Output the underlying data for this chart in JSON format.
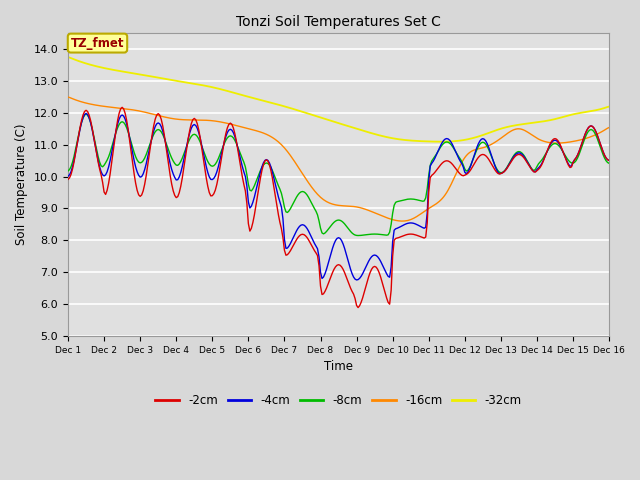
{
  "title": "Tonzi Soil Temperatures Set C",
  "xlabel": "Time",
  "ylabel": "Soil Temperature (C)",
  "ylim": [
    5.0,
    14.5
  ],
  "yticks": [
    5.0,
    6.0,
    7.0,
    8.0,
    9.0,
    10.0,
    11.0,
    12.0,
    13.0,
    14.0
  ],
  "legend_label": "TZ_fmet",
  "legend_entries": [
    "-2cm",
    "-4cm",
    "-8cm",
    "-16cm",
    "-32cm"
  ],
  "line_colors": [
    "#dd0000",
    "#0000dd",
    "#00bb00",
    "#ff8800",
    "#eeee00"
  ],
  "xtick_labels": [
    "Dec 1",
    "Dec 2",
    "Dec 3",
    "Dec 4",
    "Dec 5",
    "Dec 6",
    "Dec 7",
    "Dec 8",
    "Dec 9",
    "Dec 10",
    "Dec 11",
    "Dec 12",
    "Dec 13",
    "Dec 14",
    "Dec 15",
    "Dec 16"
  ]
}
